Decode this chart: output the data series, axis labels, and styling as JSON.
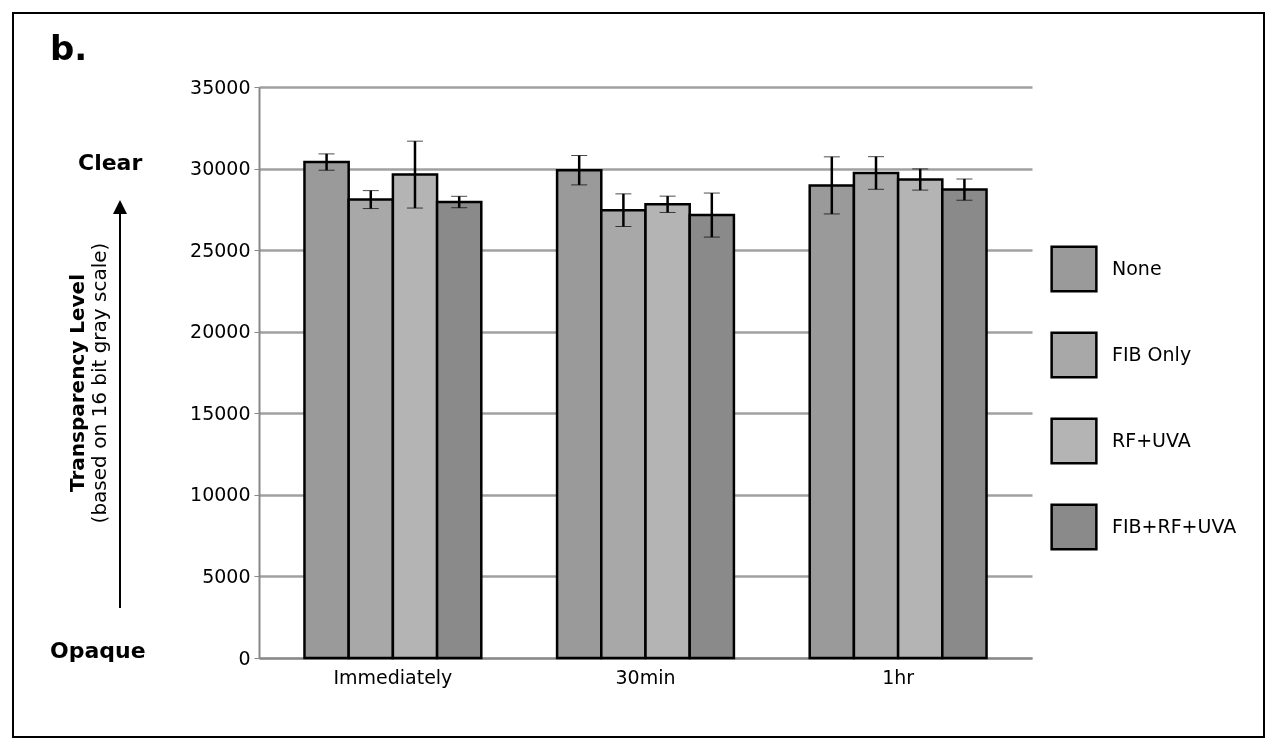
{
  "chart_data": {
    "type": "bar",
    "title": "b.",
    "annotations": [
      "Transparency Level",
      "(based on 16 bit gray scale)",
      "Clear",
      "Opaque"
    ],
    "categories": [
      "Immediately",
      "30min",
      "1hr"
    ],
    "series": [
      {
        "name": "None",
        "color": "#9a9a9a",
        "values": [
          30400,
          29900,
          28970
        ],
        "errors": [
          500,
          900,
          1750
        ]
      },
      {
        "name": "FIB Only",
        "color": "#a8a8a8",
        "values": [
          28100,
          27450,
          29730
        ],
        "errors": [
          550,
          1000,
          1000
        ]
      },
      {
        "name": "RF+UVA",
        "color": "#b4b4b4",
        "values": [
          29630,
          27810,
          29330
        ],
        "errors": [
          2050,
          500,
          650
        ]
      },
      {
        "name": "FIB+RF+UVA",
        "color": "#8a8a8a",
        "values": [
          27950,
          27150,
          28710
        ],
        "errors": [
          350,
          1350,
          650
        ]
      }
    ],
    "ylim": [
      0,
      35000
    ],
    "yticks": [
      0,
      5000,
      10000,
      15000,
      20000,
      25000,
      30000,
      35000
    ],
    "grid": "y",
    "legend": "right"
  }
}
